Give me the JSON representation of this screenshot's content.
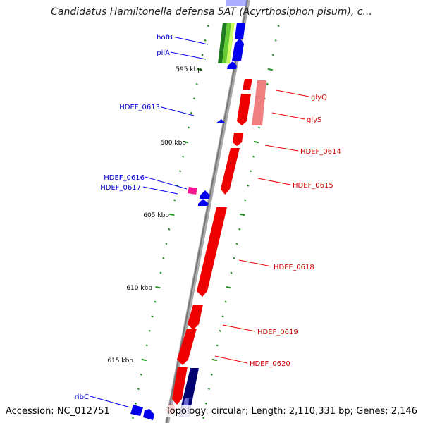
{
  "title": "Candidatus Hamiltonella defensa 5AT (Acyrthosiphon pisum), c...",
  "accession": "Accession: NC_012751",
  "topology": "Topology: circular; Length: 2,110,331 bp; Genes: 2,146",
  "scale_labels": [
    "595 kbp",
    "600 kbp",
    "605 kbp",
    "610 kbp",
    "615 kbp"
  ],
  "gene_labels": [
    {
      "text": "hofB",
      "strand": "forward"
    },
    {
      "text": "pilA",
      "strand": "forward"
    },
    {
      "text": "HDEF_0613",
      "strand": "forward"
    },
    {
      "text": "HDEF_0616",
      "strand": "forward"
    },
    {
      "text": "HDEF_0617",
      "strand": "forward"
    },
    {
      "text": "ribC",
      "strand": "forward"
    },
    {
      "text": "glyQ",
      "strand": "reverse"
    },
    {
      "text": "glyS",
      "strand": "reverse"
    },
    {
      "text": "HDEF_0614",
      "strand": "reverse"
    },
    {
      "text": "HDEF_0615",
      "strand": "reverse"
    },
    {
      "text": "HDEF_0618",
      "strand": "reverse"
    },
    {
      "text": "HDEF_0619",
      "strand": "reverse"
    },
    {
      "text": "HDEF_0620",
      "strand": "reverse"
    }
  ],
  "colors": {
    "forward_gene": "#0000ee",
    "reverse_gene": "#ee0000",
    "backbone": "#888888",
    "tick": "#228b22",
    "navy_gene": "#000070",
    "light_red": "#f08080",
    "green_gene": "#3cb371",
    "pink_gene": "#ff1493"
  }
}
